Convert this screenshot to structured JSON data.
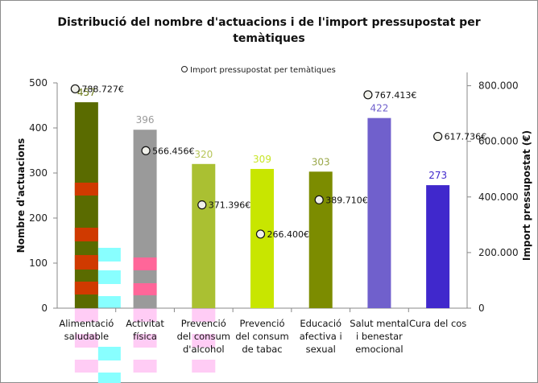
{
  "chart_data": {
    "type": "bar",
    "title": "Distribució del nombre d'actuacions i de l'import pressupostat per temàtiques",
    "title_lines": [
      "Distribució del nombre d'actuacions i de l'import pressupostat per",
      "temàtiques"
    ],
    "categories": [
      [
        "Alimentació",
        "saludable"
      ],
      [
        "Activitat",
        "física"
      ],
      [
        "Prevenció",
        "del consum",
        "d'alcohol"
      ],
      [
        "Prevenció",
        "del consum",
        "de tabac"
      ],
      [
        "Educació",
        "afectiva i",
        "sexual"
      ],
      [
        "Salut mental",
        "i benestar",
        "emocional"
      ],
      [
        "Cura del cos"
      ]
    ],
    "series": [
      {
        "name": "Nombre d'actuacions",
        "type": "bar",
        "axis": "left",
        "values": [
          457,
          396,
          320,
          309,
          303,
          422,
          273
        ],
        "labels": [
          "457",
          "396",
          "320",
          "309",
          "303",
          "422",
          "273"
        ],
        "colors": [
          "#5a6b00",
          "#9a9a9a",
          "#aac032",
          "#c8e600",
          "#7c8c00",
          "#7060cc",
          "#4028cc"
        ],
        "label_colors": [
          "#6b7a1a",
          "#9a9a9a",
          "#b7c65a",
          "#c8e628",
          "#9aa84a",
          "#7060cc",
          "#4028cc"
        ]
      },
      {
        "name": "Import pressupostat per temàtiques",
        "type": "scatter",
        "axis": "right",
        "values": [
          788727,
          566456,
          371396,
          266400,
          389710,
          767413,
          617736
        ],
        "labels": [
          "788.727€",
          "566.456€",
          "371.396€",
          "266.400€",
          "389.710€",
          "767.413€",
          "617.736€"
        ]
      }
    ],
    "legend": {
      "entries": [
        "Import pressupostat per temàtiques"
      ],
      "position": "top"
    },
    "ylabel": "Nombre d'actuacions",
    "ylim": [
      0,
      500
    ],
    "yticks": [
      "0",
      "100",
      "200",
      "300",
      "400",
      "500"
    ],
    "y2label": "Import pressupostat (€)",
    "y2lim": [
      0,
      900000
    ],
    "y2ticks": [
      "0",
      "200.000",
      "400.000",
      "600.000",
      "800.000"
    ],
    "grid": false
  }
}
